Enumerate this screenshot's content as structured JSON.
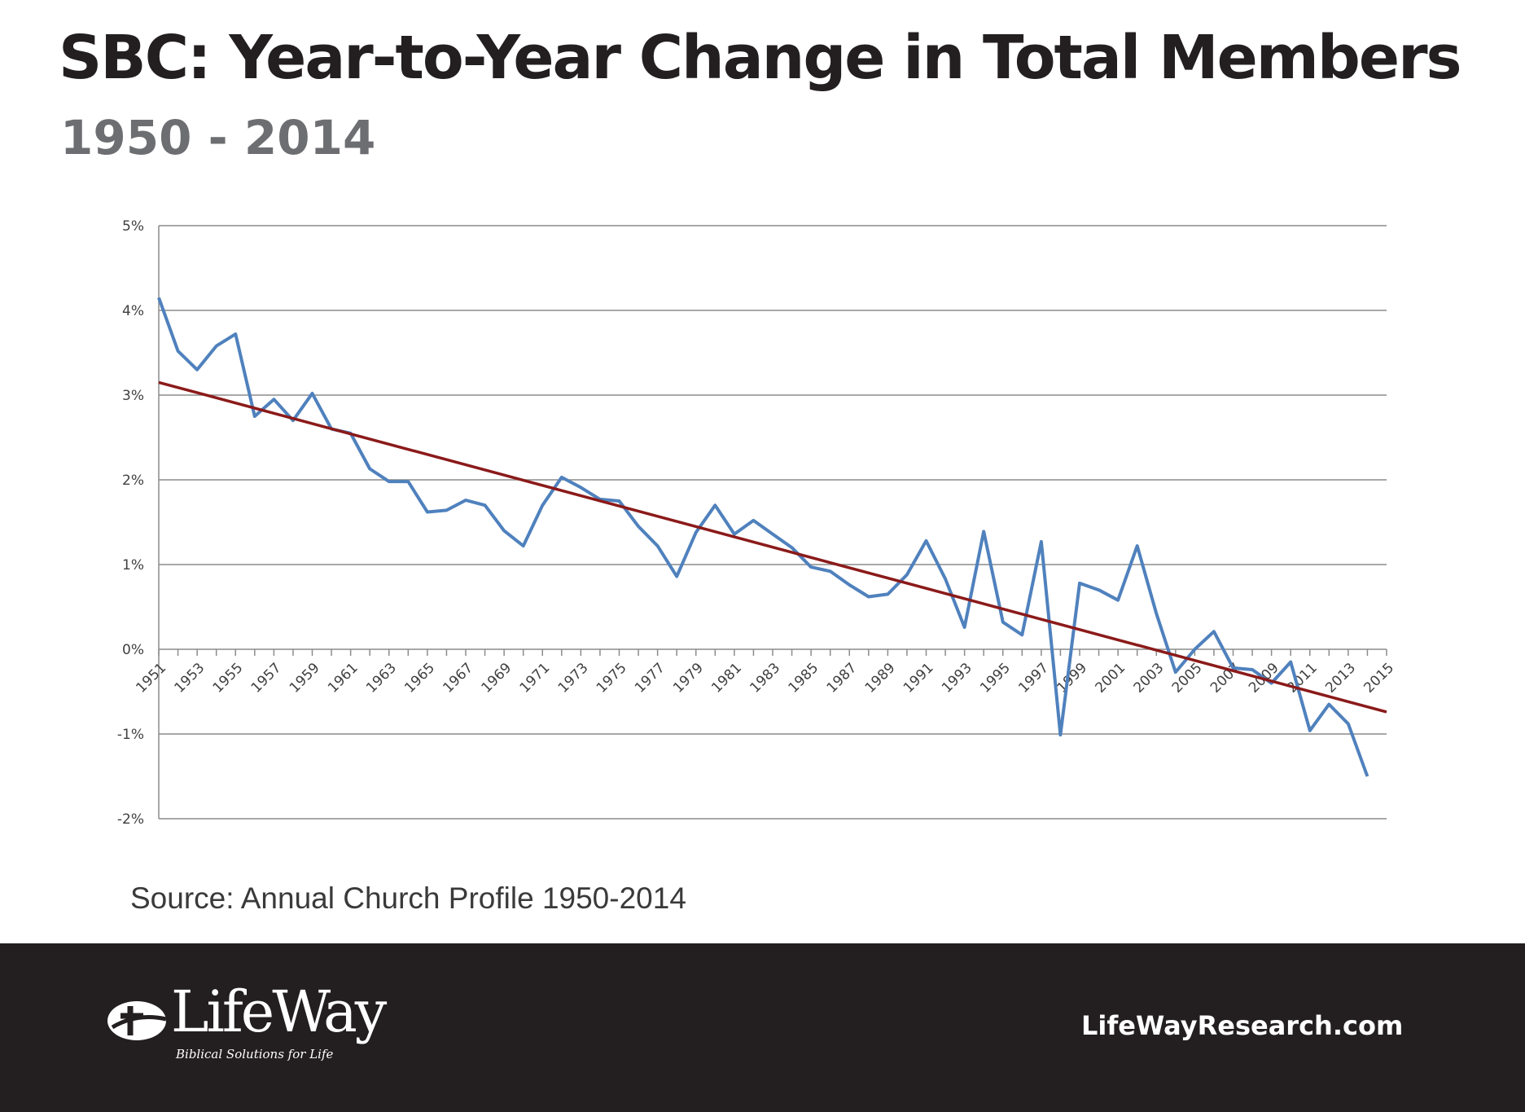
{
  "header": {
    "title": "SBC: Year-to-Year Change in Total Members",
    "subtitle": "1950 - 2014"
  },
  "source": "Source: Annual Church Profile 1950-2014",
  "footer": {
    "brand": "LifeWay",
    "tagline": "Biblical Solutions for Life",
    "website": "LifeWayResearch.com"
  },
  "colors": {
    "series": "#4f81bd",
    "trendline": "#8b1a1a",
    "footer_bg": "#231f20"
  },
  "chart_data": {
    "type": "line",
    "title": "",
    "xlabel": "",
    "ylabel": "",
    "ylim": [
      -2,
      5
    ],
    "y_ticks": [
      "5%",
      "4%",
      "3%",
      "2%",
      "1%",
      "0%",
      "-1%",
      "-2%"
    ],
    "x_tick_labels": [
      "1951",
      "1953",
      "1955",
      "1957",
      "1959",
      "1961",
      "1963",
      "1965",
      "1967",
      "1969",
      "1971",
      "1973",
      "1975",
      "1977",
      "1979",
      "1981",
      "1983",
      "1985",
      "1987",
      "1989",
      "1991",
      "1993",
      "1995",
      "1997",
      "1999",
      "2001",
      "2003",
      "2005",
      "2007",
      "2009",
      "2011",
      "2013",
      "2015"
    ],
    "grid": true,
    "legend": "none",
    "x": [
      1951,
      1952,
      1953,
      1954,
      1955,
      1956,
      1957,
      1958,
      1959,
      1960,
      1961,
      1962,
      1963,
      1964,
      1965,
      1966,
      1967,
      1968,
      1969,
      1970,
      1971,
      1972,
      1973,
      1974,
      1975,
      1976,
      1977,
      1978,
      1979,
      1980,
      1981,
      1982,
      1983,
      1984,
      1985,
      1986,
      1987,
      1988,
      1989,
      1990,
      1991,
      1992,
      1993,
      1994,
      1995,
      1996,
      1997,
      1998,
      1999,
      2000,
      2001,
      2002,
      2003,
      2004,
      2005,
      2006,
      2007,
      2008,
      2009,
      2010,
      2011,
      2012,
      2013,
      2014
    ],
    "series": [
      {
        "values": [
          4.15,
          3.52,
          3.3,
          3.58,
          3.72,
          2.75,
          2.95,
          2.7,
          3.02,
          2.6,
          2.55,
          2.13,
          1.98,
          1.98,
          1.62,
          1.64,
          1.76,
          1.7,
          1.4,
          1.22,
          1.7,
          2.03,
          1.91,
          1.77,
          1.75,
          1.45,
          1.22,
          0.86,
          1.38,
          1.7,
          1.36,
          1.52,
          1.36,
          1.2,
          0.97,
          0.92,
          0.76,
          0.62,
          0.65,
          0.88,
          1.28,
          0.83,
          0.26,
          1.39,
          0.32,
          0.17,
          1.27,
          -1.01,
          0.78,
          0.7,
          0.58,
          1.22,
          0.42,
          -0.27,
          0.0,
          0.21,
          -0.22,
          -0.24,
          -0.4,
          -0.15,
          -0.96,
          -0.65,
          -0.88,
          -1.5
        ]
      }
    ],
    "trendline": {
      "x": [
        1951,
        2015
      ],
      "values": [
        3.15,
        -0.74
      ]
    }
  }
}
